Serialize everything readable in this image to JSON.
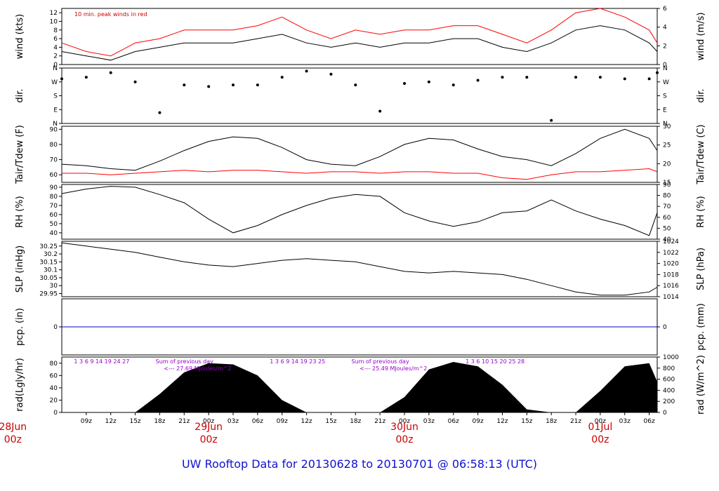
{
  "chart_data": {
    "type": "line",
    "title": "UW Rooftop Data for 20130628  to  20130701 @ 06:58:13  (UTC)",
    "time_range": {
      "start": "2013-06-28 06z",
      "end": "2013-07-01 07z"
    },
    "x_ticks": [
      "09z",
      "12z",
      "15z",
      "18z",
      "21z",
      "00z",
      "03z",
      "06z",
      "09z",
      "12z",
      "15z",
      "18z",
      "21z",
      "00z",
      "03z",
      "06z",
      "09z",
      "12z",
      "15z",
      "18z",
      "21z",
      "00z",
      "03z",
      "06z"
    ],
    "day_labels": [
      {
        "date": "28Jun",
        "hour": "00z"
      },
      {
        "date": "29Jun",
        "hour": "00z"
      },
      {
        "date": "30Jun",
        "hour": "00z"
      },
      {
        "date": "01Jul",
        "hour": "00z"
      }
    ],
    "panels": [
      {
        "id": "wind",
        "ylabel": "wind (kts)",
        "ylabel_right": "wind (m/s)",
        "ylim": [
          0,
          13
        ],
        "yticks": [
          0,
          2,
          4,
          6,
          8,
          10,
          12
        ],
        "yticks_right": [
          0,
          2,
          4,
          6
        ],
        "annotation": "10 min. peak winds in red",
        "series": [
          {
            "color": "#000000",
            "hours": [
              0,
              3,
              6,
              9,
              12,
              15,
              18,
              21,
              24,
              27,
              30,
              33,
              36,
              39,
              42,
              45,
              48,
              51,
              54,
              57,
              60,
              63,
              66,
              69,
              72,
              75
            ],
            "values": [
              3,
              2,
              1,
              3,
              4,
              5,
              5,
              5,
              6,
              7,
              5,
              4,
              5,
              4,
              5,
              5,
              6,
              6,
              4,
              3,
              5,
              8,
              9,
              8,
              5,
              3
            ]
          },
          {
            "color": "#ff0000",
            "hours": [
              0,
              3,
              6,
              9,
              12,
              15,
              18,
              21,
              24,
              27,
              30,
              33,
              36,
              39,
              42,
              45,
              48,
              51,
              54,
              57,
              60,
              63,
              66,
              69,
              72,
              75
            ],
            "values": [
              5,
              3,
              2,
              5,
              6,
              8,
              8,
              8,
              9,
              11,
              8,
              6,
              8,
              7,
              8,
              8,
              9,
              9,
              7,
              5,
              8,
              12,
              13,
              11,
              8,
              5
            ]
          }
        ]
      },
      {
        "id": "dir",
        "ylabel": "dir.",
        "ylabel_right": "dir.",
        "ylim": [
          0,
          360
        ],
        "ytick_labels": [
          "N",
          "E",
          "S",
          "W",
          "N"
        ],
        "ytick_labels_right": [
          "N",
          "E",
          "S",
          "W",
          "N"
        ],
        "series": [
          {
            "color": "#000000",
            "hours": [
              0,
              3,
              6,
              9,
              12,
              15,
              18,
              21,
              24,
              27,
              30,
              33,
              36,
              39,
              42,
              45,
              48,
              51,
              54,
              57,
              60,
              63,
              66,
              69,
              72,
              75
            ],
            "values": [
              290,
              300,
              330,
              270,
              70,
              250,
              240,
              250,
              250,
              300,
              340,
              320,
              250,
              80,
              260,
              270,
              250,
              280,
              300,
              300,
              20,
              300,
              300,
              290,
              290,
              330
            ]
          }
        ]
      },
      {
        "id": "temp",
        "ylabel": "Tair/Tdew (F)",
        "ylabel_right": "Tair/Tdew (C)",
        "ylim": [
          55,
          92
        ],
        "yticks": [
          60,
          70,
          80,
          90
        ],
        "yticks_right": [
          15,
          20,
          25,
          30
        ],
        "series": [
          {
            "color": "#000000",
            "hours": [
              0,
              3,
              6,
              9,
              12,
              15,
              18,
              21,
              24,
              27,
              30,
              33,
              36,
              39,
              42,
              45,
              48,
              51,
              54,
              57,
              60,
              63,
              66,
              69,
              72,
              75
            ],
            "values": [
              67,
              66,
              64,
              63,
              69,
              76,
              82,
              85,
              84,
              78,
              70,
              67,
              66,
              72,
              80,
              84,
              83,
              77,
              72,
              70,
              66,
              74,
              84,
              90,
              84,
              76
            ]
          },
          {
            "color": "#ff0000",
            "hours": [
              0,
              3,
              6,
              9,
              12,
              15,
              18,
              21,
              24,
              27,
              30,
              33,
              36,
              39,
              42,
              45,
              48,
              51,
              54,
              57,
              60,
              63,
              66,
              69,
              72,
              75
            ],
            "values": [
              61,
              61,
              60,
              61,
              62,
              63,
              62,
              63,
              63,
              62,
              61,
              62,
              62,
              61,
              62,
              62,
              61,
              61,
              58,
              57,
              60,
              62,
              62,
              63,
              64,
              62
            ]
          }
        ]
      },
      {
        "id": "rh",
        "ylabel": "RH (%)",
        "ylabel_right": "RH (%)",
        "ylim": [
          33,
          93
        ],
        "yticks": [
          40,
          50,
          60,
          70,
          80,
          90
        ],
        "yticks_right": [
          40,
          50,
          60,
          70,
          80,
          90
        ],
        "series": [
          {
            "color": "#000000",
            "hours": [
              0,
              3,
              6,
              9,
              12,
              15,
              18,
              21,
              24,
              27,
              30,
              33,
              36,
              39,
              42,
              45,
              48,
              51,
              54,
              57,
              60,
              63,
              66,
              69,
              72,
              75
            ],
            "values": [
              83,
              88,
              91,
              90,
              82,
              73,
              55,
              40,
              48,
              60,
              70,
              78,
              82,
              80,
              62,
              53,
              47,
              52,
              62,
              64,
              76,
              64,
              55,
              48,
              37,
              62
            ]
          }
        ]
      },
      {
        "id": "slp",
        "ylabel": "SLP (inHg)",
        "ylabel_right": "SLP (hPa)",
        "ylim": [
          29.93,
          30.28
        ],
        "yticks": [
          29.95,
          30.0,
          30.05,
          30.1,
          30.15,
          30.2,
          30.25
        ],
        "ytick_labels_right": [
          "1014",
          "1016",
          "1018",
          "1020",
          "1022",
          "1024"
        ],
        "series": [
          {
            "color": "#000000",
            "hours": [
              0,
              3,
              6,
              9,
              12,
              15,
              18,
              21,
              24,
              27,
              30,
              33,
              36,
              39,
              42,
              45,
              48,
              51,
              54,
              57,
              60,
              63,
              66,
              69,
              72,
              75
            ],
            "values": [
              30.27,
              30.25,
              30.23,
              30.21,
              30.18,
              30.15,
              30.13,
              30.12,
              30.14,
              30.16,
              30.17,
              30.16,
              30.15,
              30.12,
              30.09,
              30.08,
              30.09,
              30.08,
              30.07,
              30.04,
              30.0,
              29.96,
              29.94,
              29.94,
              29.96,
              29.99
            ]
          }
        ]
      },
      {
        "id": "pcp",
        "ylabel": "pcp. (in)",
        "ylabel_right": "pcp. (mm)",
        "ytick_labels": [
          "0"
        ],
        "ytick_labels_right": [
          "0"
        ],
        "series": [
          {
            "color": "#0000cc",
            "hours": [
              0,
              75
            ],
            "values": [
              0,
              0
            ]
          }
        ]
      },
      {
        "id": "rad",
        "ylabel": "rad(Lgly/hr)",
        "ylabel_right": "rad (W/m^2)",
        "ylim": [
          0,
          90
        ],
        "yticks": [
          0,
          20,
          40,
          60,
          80
        ],
        "ytick_labels_right": [
          "0",
          "200",
          "400",
          "600",
          "800",
          "1000"
        ],
        "annotations": [
          {
            "text": "1   3   6   9   14  19   24   27",
            "color": "#9900cc"
          },
          {
            "text": "Sum of previous day",
            "color": "#9900cc"
          },
          {
            "text": "<--- 27.69 MJoules/m^2",
            "color": "#9900cc"
          },
          {
            "text": "1   3   6   9   14  19   23   25",
            "color": "#9900cc"
          },
          {
            "text": "Sum of previous day",
            "color": "#9900cc"
          },
          {
            "text": "<--- 25.49 MJoules/m^2",
            "color": "#9900cc"
          },
          {
            "text": "1   3   6   10  15   20   25   28",
            "color": "#9900cc"
          }
        ],
        "series": [
          {
            "color": "#000000",
            "hours": [
              0,
              3,
              6,
              9,
              12,
              15,
              18,
              21,
              24,
              27,
              30,
              33,
              36,
              39,
              42,
              45,
              48,
              51,
              54,
              57,
              60,
              63,
              66,
              69,
              72,
              75
            ],
            "values": [
              0,
              0,
              0,
              0,
              30,
              65,
              80,
              78,
              60,
              20,
              0,
              0,
              0,
              0,
              25,
              70,
              82,
              75,
              45,
              5,
              0,
              0,
              35,
              75,
              80,
              50
            ]
          }
        ]
      }
    ]
  }
}
